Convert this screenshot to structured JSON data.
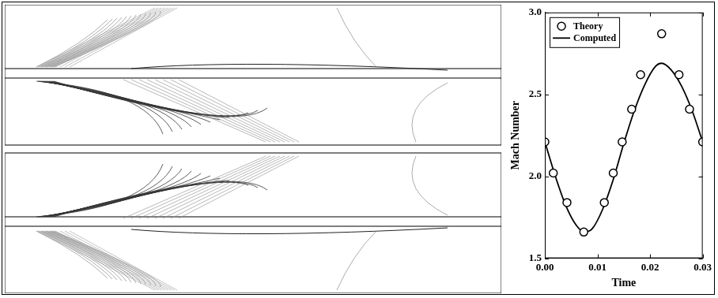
{
  "chart_data": {
    "type": "line",
    "x_label": "Time",
    "y_label": "Mach Number",
    "xlim": [
      0,
      0.03
    ],
    "xticks": [
      {
        "value": 0,
        "label": "0.00"
      },
      {
        "value": 0.01,
        "label": "0.01"
      },
      {
        "value": 0.02,
        "label": "0.02"
      },
      {
        "value": 0.03,
        "label": "0.03"
      }
    ],
    "ylim": [
      1.5,
      3.0
    ],
    "yticks": [
      1.5,
      {
        "value": 2.0,
        "label": "2.0"
      },
      2.5,
      {
        "value": 3.0,
        "label": "3.0"
      }
    ],
    "grid": false,
    "legend": "upper left",
    "series": [
      {
        "name": "Theory",
        "type": "scatter",
        "marker": "circle",
        "color": "#000000",
        "x": [
          0,
          0.0016,
          0.0042,
          0.0074,
          0.0113,
          0.013,
          0.0147,
          0.0165,
          0.0182,
          0.0222,
          0.0255,
          0.0275,
          0.03
        ],
        "values": [
          2.21,
          2.02,
          1.84,
          1.66,
          1.84,
          2.02,
          2.21,
          2.41,
          2.62,
          2.87,
          2.62,
          2.41,
          2.21
        ]
      },
      {
        "name": "Computed",
        "type": "line",
        "line_style": "solid",
        "color": "#000000",
        "x": [
          0,
          0.002,
          0.004,
          0.006,
          0.0075,
          0.009,
          0.011,
          0.013,
          0.015,
          0.017,
          0.019,
          0.021,
          0.0222,
          0.024,
          0.026,
          0.028,
          0.03
        ],
        "values": [
          2.21,
          2.0,
          1.82,
          1.7,
          1.66,
          1.68,
          1.8,
          1.98,
          2.2,
          2.4,
          2.56,
          2.67,
          2.69,
          2.65,
          2.55,
          2.4,
          2.21
        ]
      }
    ]
  }
}
